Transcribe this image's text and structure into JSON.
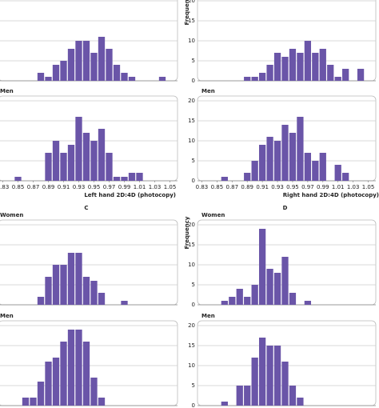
{
  "chart_data": [
    {
      "type": "histogram",
      "color": "#6a55a8",
      "ylim": [
        0,
        20
      ],
      "yticks": [
        0,
        5,
        10,
        15,
        20
      ],
      "xlim": [
        0.82,
        1.06
      ],
      "bins": [
        0.825,
        0.835,
        0.845,
        0.855,
        0.865,
        0.875,
        0.885,
        0.895,
        0.905,
        0.915,
        0.925,
        0.935,
        0.945,
        0.955,
        0.965,
        0.975,
        0.985,
        0.995,
        1.005,
        1.015,
        1.025,
        1.035,
        1.045,
        1.055
      ],
      "values": [
        0,
        0,
        0,
        0,
        0,
        2,
        1,
        4,
        5,
        8,
        10,
        10,
        7,
        11,
        8,
        4,
        2,
        1,
        0,
        0,
        0,
        1,
        0
      ]
    },
    {
      "type": "histogram",
      "title": "Men",
      "color": "#6a55a8",
      "ylim": [
        0,
        20
      ],
      "yticks": [
        0,
        5,
        10,
        15,
        20
      ],
      "xlim": [
        0.82,
        1.06
      ],
      "xticks": [
        0.83,
        0.85,
        0.87,
        0.89,
        0.91,
        0.93,
        0.95,
        0.97,
        0.99,
        1.01,
        1.03,
        1.05
      ],
      "xlabel": "Left hand 2D:4D (photocopy)",
      "bins": [
        0.825,
        0.835,
        0.845,
        0.855,
        0.865,
        0.875,
        0.885,
        0.895,
        0.905,
        0.915,
        0.925,
        0.935,
        0.945,
        0.955,
        0.965,
        0.975,
        0.985,
        0.995,
        1.005,
        1.015,
        1.025,
        1.035,
        1.045,
        1.055
      ],
      "values": [
        0,
        0,
        1,
        0,
        0,
        0,
        7,
        10,
        7,
        9,
        16,
        12,
        10,
        13,
        7,
        1,
        1,
        2,
        2,
        0,
        0,
        0,
        0
      ]
    },
    {
      "type": "histogram",
      "ylabel": "Frequency",
      "color": "#6a55a8",
      "ylim": [
        0,
        20
      ],
      "yticks": [
        0,
        5,
        10,
        15,
        20
      ],
      "xlim": [
        0.82,
        1.06
      ],
      "bins": [
        0.825,
        0.835,
        0.845,
        0.855,
        0.865,
        0.875,
        0.885,
        0.895,
        0.905,
        0.915,
        0.925,
        0.935,
        0.945,
        0.955,
        0.965,
        0.975,
        0.985,
        0.995,
        1.005,
        1.015,
        1.025,
        1.035,
        1.045,
        1.055
      ],
      "values": [
        0,
        0,
        0,
        0,
        0,
        0,
        1,
        1,
        2,
        4,
        7,
        6,
        8,
        7,
        10,
        7,
        8,
        4,
        1,
        3,
        0,
        3,
        0
      ]
    },
    {
      "type": "histogram",
      "title": "Men",
      "color": "#6a55a8",
      "ylim": [
        0,
        20
      ],
      "yticks": [
        0,
        5,
        10,
        15,
        20
      ],
      "xlim": [
        0.82,
        1.06
      ],
      "xticks": [
        0.83,
        0.85,
        0.87,
        0.89,
        0.91,
        0.93,
        0.95,
        0.97,
        0.99,
        1.01,
        1.03,
        1.05
      ],
      "xlabel": "Right hand 2D:4D (photocopy)",
      "bins": [
        0.825,
        0.835,
        0.845,
        0.855,
        0.865,
        0.875,
        0.885,
        0.895,
        0.905,
        0.915,
        0.925,
        0.935,
        0.945,
        0.955,
        0.965,
        0.975,
        0.985,
        0.995,
        1.005,
        1.015,
        1.025,
        1.035,
        1.045,
        1.055
      ],
      "values": [
        0,
        0,
        0,
        1,
        0,
        0,
        2,
        5,
        9,
        11,
        10,
        14,
        12,
        16,
        7,
        5,
        7,
        0,
        4,
        2,
        0,
        0,
        0
      ]
    },
    {
      "type": "histogram",
      "panel_label": "C",
      "title": "Women",
      "color": "#6a55a8",
      "ylim": [
        0,
        20
      ],
      "yticks": [
        0,
        5,
        10,
        15,
        20
      ],
      "xlim": [
        0.82,
        1.06
      ],
      "bins": [
        0.825,
        0.835,
        0.845,
        0.855,
        0.865,
        0.875,
        0.885,
        0.895,
        0.905,
        0.915,
        0.925,
        0.935,
        0.945,
        0.955,
        0.965,
        0.975,
        0.985,
        0.995,
        1.005,
        1.015,
        1.025,
        1.035,
        1.045,
        1.055
      ],
      "values": [
        0,
        0,
        0,
        0,
        0,
        2,
        7,
        10,
        10,
        13,
        13,
        7,
        6,
        3,
        0,
        0,
        1,
        0,
        0,
        0,
        0,
        0,
        0
      ]
    },
    {
      "type": "histogram",
      "title": "Men",
      "color": "#6a55a8",
      "ylim": [
        0,
        20
      ],
      "yticks": [
        0,
        5,
        10,
        15,
        20
      ],
      "xlim": [
        0.82,
        1.06
      ],
      "bins": [
        0.825,
        0.835,
        0.845,
        0.855,
        0.865,
        0.875,
        0.885,
        0.895,
        0.905,
        0.915,
        0.925,
        0.935,
        0.945,
        0.955,
        0.965,
        0.975,
        0.985,
        0.995,
        1.005,
        1.015,
        1.025,
        1.035,
        1.045,
        1.055
      ],
      "values": [
        0,
        0,
        0,
        2,
        2,
        6,
        11,
        12,
        16,
        19,
        19,
        16,
        7,
        2,
        0,
        0,
        0,
        0,
        0,
        0,
        0,
        0,
        0
      ]
    },
    {
      "type": "histogram",
      "panel_label": "D",
      "title": "Women",
      "ylabel": "Frequency",
      "color": "#6a55a8",
      "ylim": [
        0,
        20
      ],
      "yticks": [
        0,
        5,
        10,
        15,
        20
      ],
      "xlim": [
        0.82,
        1.06
      ],
      "bins": [
        0.825,
        0.835,
        0.845,
        0.855,
        0.865,
        0.875,
        0.885,
        0.895,
        0.905,
        0.915,
        0.925,
        0.935,
        0.945,
        0.955,
        0.965,
        0.975,
        0.985,
        0.995,
        1.005,
        1.015,
        1.025,
        1.035,
        1.045,
        1.055
      ],
      "values": [
        0,
        0,
        0,
        1,
        2,
        4,
        2,
        5,
        19,
        9,
        8,
        12,
        3,
        0,
        1,
        0,
        0,
        0,
        0,
        0,
        0,
        0,
        0
      ]
    },
    {
      "type": "histogram",
      "title": "Men",
      "color": "#6a55a8",
      "ylim": [
        0,
        20
      ],
      "yticks": [
        0,
        5,
        10,
        15,
        20
      ],
      "xlim": [
        0.82,
        1.06
      ],
      "bins": [
        0.825,
        0.835,
        0.845,
        0.855,
        0.865,
        0.875,
        0.885,
        0.895,
        0.905,
        0.915,
        0.925,
        0.935,
        0.945,
        0.955,
        0.965,
        0.975,
        0.985,
        0.995,
        1.005,
        1.015,
        1.025,
        1.035,
        1.045,
        1.055
      ],
      "values": [
        0,
        0,
        0,
        1,
        0,
        5,
        5,
        12,
        17,
        15,
        15,
        11,
        5,
        2,
        0,
        0,
        0,
        0,
        0,
        0,
        0,
        0,
        0
      ]
    }
  ]
}
